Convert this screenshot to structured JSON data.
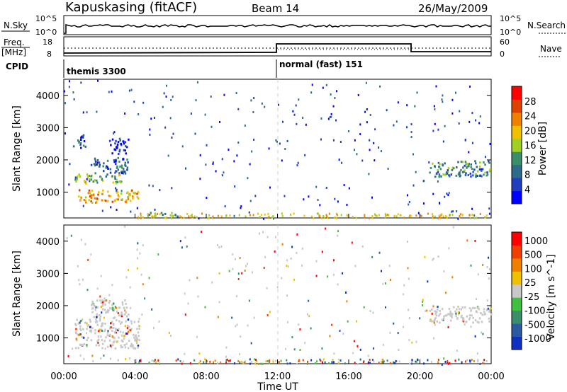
{
  "header": {
    "station": "Kapuskasing (fitACF)",
    "beam": "Beam 14",
    "date": "26/May/2009"
  },
  "strip": {
    "left_top": "N.Sky",
    "left_top_scale_hi": "10^5",
    "left_top_scale_lo": "10^0",
    "right_top": "N.Search",
    "right_top_scale_hi": "10^5",
    "right_top_scale_lo": "10^0",
    "left_freq": "Freq.",
    "left_freq_unit": "[MHz]",
    "left_freq_hi": "18",
    "left_freq_lo": "8",
    "right_nave": "Nave",
    "right_nave_hi": "60",
    "right_nave_lo": "0",
    "cpid": "CPID",
    "cpid_1": "themis 3300",
    "cpid_2": "normal (fast) 151"
  },
  "colors": {
    "power_scale": [
      "#0000ff",
      "#1f3fbf",
      "#2e6a8a",
      "#3a8f6a",
      "#a0d020",
      "#f0c000",
      "#f08000",
      "#e04000",
      "#ff0000"
    ],
    "velocity_scale": [
      "#1030c0",
      "#2a5aa0",
      "#3a8f6a",
      "#40c040",
      "#c8c8c8",
      "#f0c000",
      "#f08000",
      "#f04000",
      "#ff0000"
    ]
  },
  "chart_data": [
    {
      "type": "heatmap",
      "name": "power",
      "xlabel": "Time UT",
      "ylabel": "Slant Range [km]",
      "x_ticks": [
        "00:00",
        "04:00",
        "08:00",
        "12:00",
        "16:00",
        "20:00",
        "00:00"
      ],
      "y_ticks": [
        "1000",
        "2000",
        "3000",
        "4000"
      ],
      "ylim": [
        200,
        4500
      ],
      "xlim_hours": [
        0,
        24
      ],
      "colorbar_label": "Power [dB]",
      "colorbar_ticks": [
        "4",
        "8",
        "12",
        "16",
        "20",
        "24",
        "28"
      ],
      "regions": [
        {
          "t0": 0.5,
          "t1": 1.2,
          "r0": 2400,
          "r1": 2800,
          "level": 2
        },
        {
          "t0": 0.6,
          "t1": 3.2,
          "r0": 1300,
          "r1": 1600,
          "level": 4
        },
        {
          "t0": 0.8,
          "t1": 4.2,
          "r0": 700,
          "r1": 1100,
          "level": 6
        },
        {
          "t0": 1.5,
          "t1": 3.6,
          "r0": 1600,
          "r1": 2100,
          "level": 2
        },
        {
          "t0": 2.5,
          "t1": 3.6,
          "r0": 2200,
          "r1": 2700,
          "level": 1
        },
        {
          "t0": 4.8,
          "t1": 6.5,
          "r0": 250,
          "r1": 400,
          "level": 4
        },
        {
          "t0": 20.5,
          "t1": 24,
          "r0": 1500,
          "r1": 2000,
          "level": 3
        }
      ]
    },
    {
      "type": "heatmap",
      "name": "velocity",
      "xlabel": "Time UT",
      "ylabel": "Slant Range [km]",
      "x_ticks": [
        "00:00",
        "04:00",
        "08:00",
        "12:00",
        "16:00",
        "20:00",
        "00:00"
      ],
      "y_ticks": [
        "1000",
        "2000",
        "3000",
        "4000"
      ],
      "ylim": [
        200,
        4500
      ],
      "xlim_hours": [
        0,
        24
      ],
      "colorbar_label": "Velocity [m s^-1]",
      "colorbar_ticks": [
        "1000",
        "500",
        "100",
        "25",
        "-25",
        "-100",
        "-500",
        "-1000"
      ],
      "regions": [
        {
          "t0": 0.6,
          "t1": 4.2,
          "r0": 700,
          "r1": 1600,
          "level": 4
        },
        {
          "t0": 1.5,
          "t1": 3.6,
          "r0": 1600,
          "r1": 2200,
          "level": 4
        },
        {
          "t0": 20.5,
          "t1": 24,
          "r0": 1500,
          "r1": 2000,
          "level": 4
        }
      ]
    }
  ]
}
